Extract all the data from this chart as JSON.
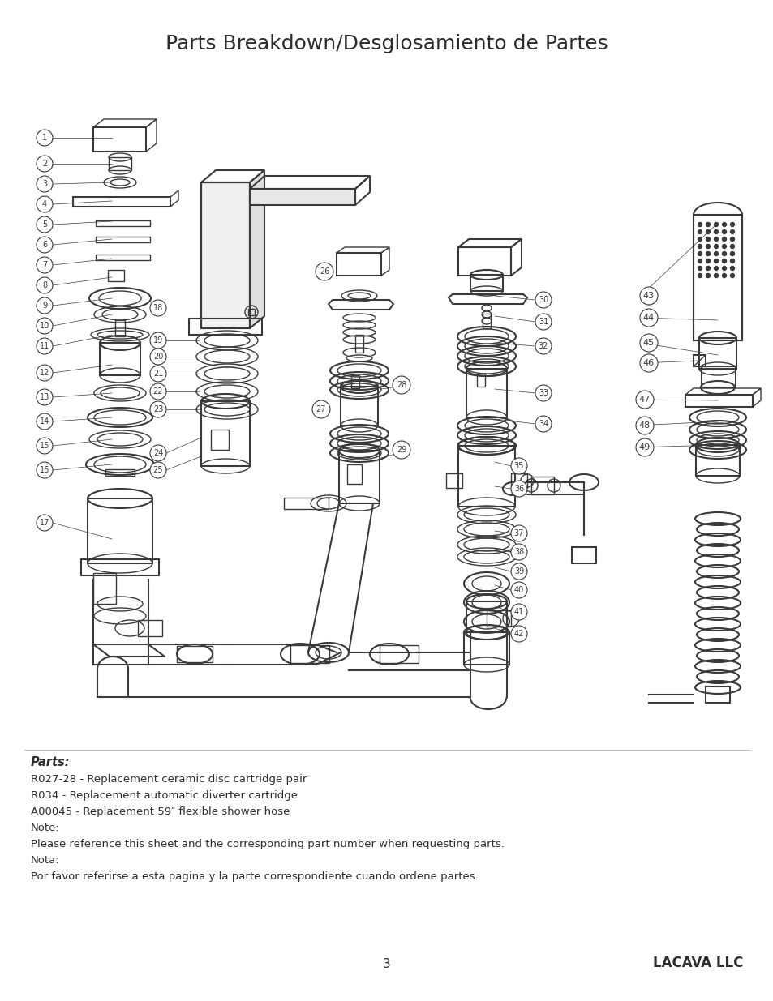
{
  "title": "Parts Breakdown/Desglosamiento de Partes",
  "title_fontsize": 18,
  "title_color": "#2d2d2d",
  "background_color": "#ffffff",
  "parts_label": "Parts:",
  "parts_lines": [
    "R027-28 - Replacement ceramic disc cartridge pair",
    "R034 - Replacement automatic diverter cartridge",
    "A00045 - Replacement 59″ flexible shower hose"
  ],
  "note_lines": [
    "Note:",
    "Please reference this sheet and the corresponding part number when requesting parts.",
    "Nota:",
    "Por favor referirse a esta pagina y la parte correspondiente cuando ordene partes."
  ],
  "page_number": "3",
  "company": "LACAVA LLC",
  "text_color": "#2d2d2d",
  "draw_color": "#3a3a3a"
}
